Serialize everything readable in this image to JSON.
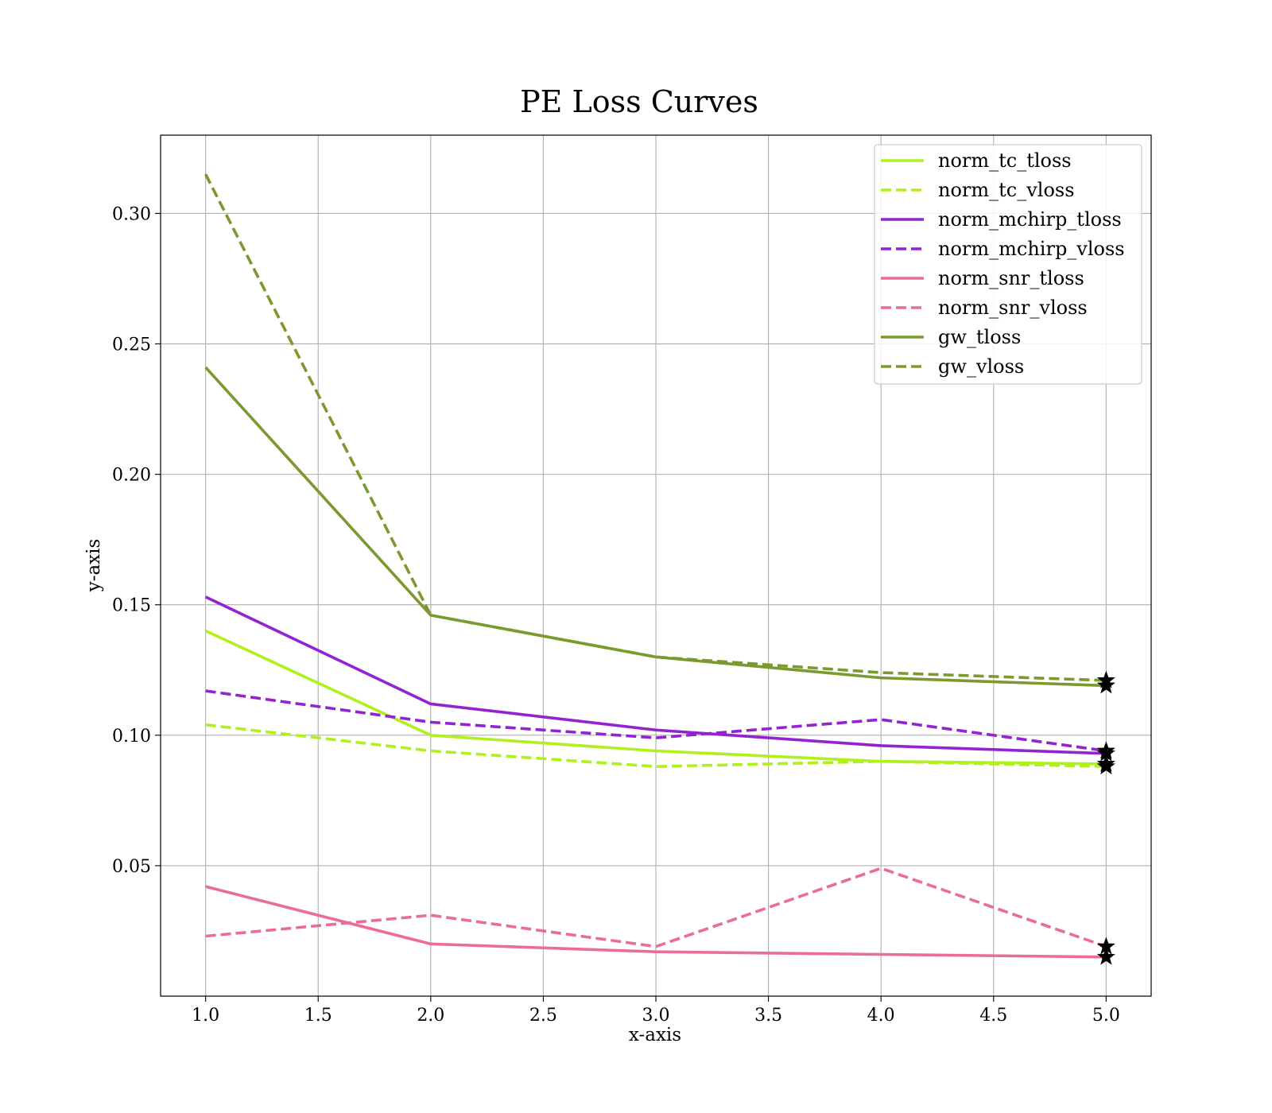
{
  "chart_data": {
    "type": "line",
    "title": "PE Loss Curves",
    "xlabel": "x-axis",
    "ylabel": "y-axis",
    "xlim": [
      0.8,
      5.2
    ],
    "ylim": [
      0.0,
      0.33
    ],
    "x": [
      1.0,
      2.0,
      3.0,
      4.0,
      5.0
    ],
    "x_ticks": [
      1.0,
      1.5,
      2.0,
      2.5,
      3.0,
      3.5,
      4.0,
      4.5,
      5.0
    ],
    "x_tick_labels": [
      "1.0",
      "1.5",
      "2.0",
      "2.5",
      "3.0",
      "3.5",
      "4.0",
      "4.5",
      "5.0"
    ],
    "y_ticks": [
      0.05,
      0.1,
      0.15,
      0.2,
      0.25,
      0.3
    ],
    "y_tick_labels": [
      "0.05",
      "0.10",
      "0.15",
      "0.20",
      "0.25",
      "0.30"
    ],
    "grid": true,
    "legend_position": "top-right",
    "end_marker": "star",
    "series": [
      {
        "name": "norm_tc_tloss",
        "color": "#b0f01c",
        "style": "solid",
        "values": [
          0.14,
          0.1,
          0.094,
          0.09,
          0.089
        ]
      },
      {
        "name": "norm_tc_vloss",
        "color": "#b0f01c",
        "style": "dashed",
        "values": [
          0.104,
          0.094,
          0.088,
          0.09,
          0.088
        ]
      },
      {
        "name": "norm_mchirp_tloss",
        "color": "#9323d2",
        "style": "solid",
        "values": [
          0.153,
          0.112,
          0.102,
          0.096,
          0.093
        ]
      },
      {
        "name": "norm_mchirp_vloss",
        "color": "#9323d2",
        "style": "dashed",
        "values": [
          0.117,
          0.105,
          0.099,
          0.106,
          0.094
        ]
      },
      {
        "name": "norm_snr_tloss",
        "color": "#ea6c9c",
        "style": "solid",
        "values": [
          0.042,
          0.02,
          0.017,
          0.016,
          0.015
        ]
      },
      {
        "name": "norm_snr_vloss",
        "color": "#ea6c9c",
        "style": "dashed",
        "values": [
          0.023,
          0.031,
          0.019,
          0.049,
          0.019
        ]
      },
      {
        "name": "gw_tloss",
        "color": "#7a9a30",
        "style": "solid",
        "values": [
          0.241,
          0.146,
          0.13,
          0.122,
          0.119
        ]
      },
      {
        "name": "gw_vloss",
        "color": "#7a9a30",
        "style": "dashed",
        "values": [
          0.315,
          0.146,
          0.13,
          0.124,
          0.121
        ]
      }
    ]
  }
}
